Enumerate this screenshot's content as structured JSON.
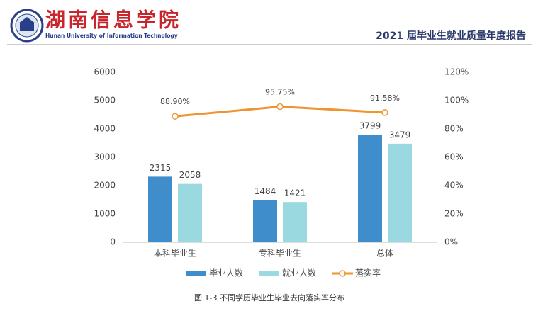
{
  "header": {
    "title": "湖南信息学院",
    "subtitle": "Hunan University of Information Technology",
    "report_title": "2021 届毕业生就业质量年度报告"
  },
  "caption": "图 1-3   不同学历毕业生毕业去向落实率分布",
  "chart_data": {
    "type": "bar",
    "categories": [
      "本科毕业生",
      "专科毕业生",
      "总体"
    ],
    "series": [
      {
        "name": "毕业人数",
        "color": "#3f8dca",
        "values": [
          2315,
          1484,
          3799
        ]
      },
      {
        "name": "就业人数",
        "color": "#9bd9e0",
        "values": [
          2058,
          1421,
          3479
        ]
      },
      {
        "name": "落实率",
        "color": "#ee9530",
        "type": "line",
        "axis": "y2",
        "values": [
          88.9,
          95.75,
          91.58
        ],
        "value_labels": [
          "88.90%",
          "95.75%",
          "91.58%"
        ]
      }
    ],
    "ylim": [
      0,
      6000
    ],
    "yticks": [
      0,
      1000,
      2000,
      3000,
      4000,
      5000,
      6000
    ],
    "y2lim": [
      0,
      120
    ],
    "y2ticks": [
      {
        "value": 0,
        "label": "0%"
      },
      {
        "value": 20,
        "label": "20%"
      },
      {
        "value": 40,
        "label": "40%"
      },
      {
        "value": 60,
        "label": "60%"
      },
      {
        "value": 80,
        "label": "80%"
      },
      {
        "value": 100,
        "label": "100%"
      },
      {
        "value": 120,
        "label": "120%"
      }
    ],
    "legend": "bottom"
  }
}
